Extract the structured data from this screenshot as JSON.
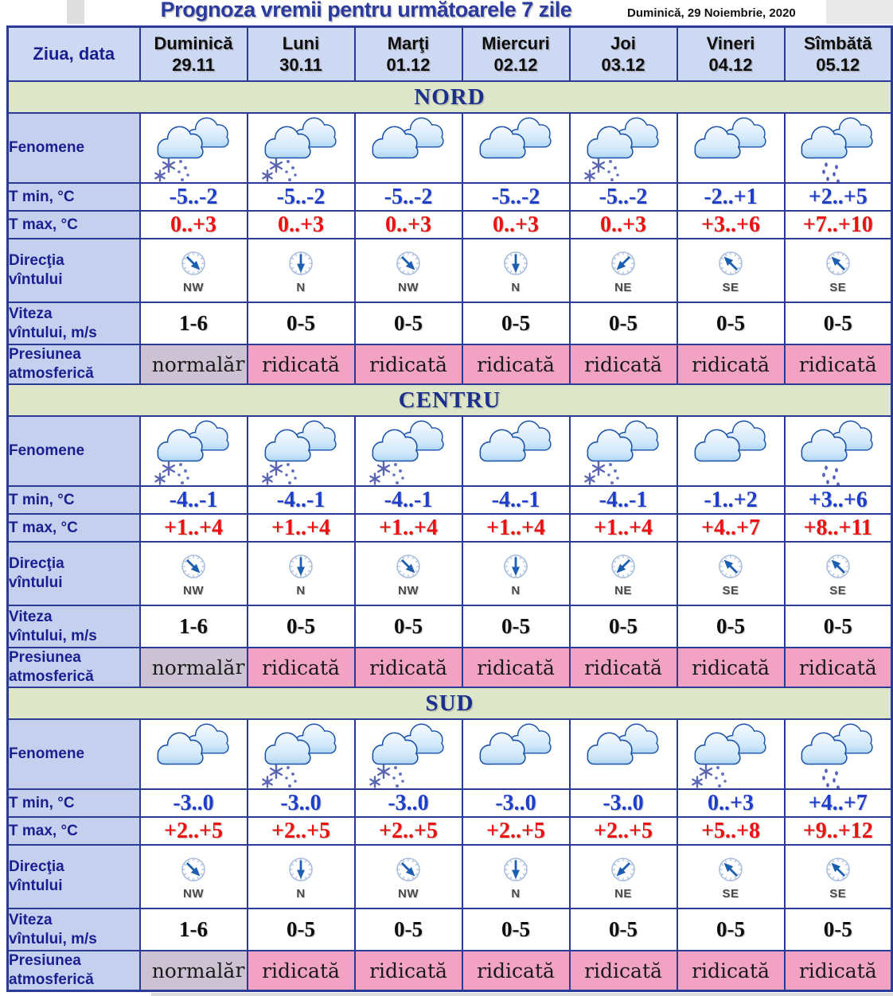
{
  "page": {
    "title": "Prognoza vremii pentru următoarele 7 zile",
    "date": "Duminică, 29 Noiembrie, 2020"
  },
  "colors": {
    "title_blue": "#2b3a9e",
    "border_navy": "#2b3a94",
    "header_bg": "#cdd9f2",
    "label_bg": "#c5cfee",
    "band_bg": "#dde6c8",
    "band_text": "#1c2f8c",
    "tmin_blue": "#1d3ecb",
    "tmax_red": "#ee1111",
    "pressure_high_bg": "#f2a2c2",
    "pressure_normal_bg": "#cdc2d3",
    "compass_blue": "#1c5fb0",
    "compass_ring": "#aabedd",
    "snow_slate": "#5a66b2",
    "wind_label_gray": "#4a4a4a"
  },
  "table": {
    "corner_label": "Ziua, data",
    "pressure_overflow": "r",
    "days": [
      {
        "name": "Duminică",
        "date": "29.11"
      },
      {
        "name": "Luni",
        "date": "30.11"
      },
      {
        "name": "Marţi",
        "date": "01.12"
      },
      {
        "name": "Miercuri",
        "date": "02.12"
      },
      {
        "name": "Joi",
        "date": "03.12"
      },
      {
        "name": "Vineri",
        "date": "04.12"
      },
      {
        "name": "Sîmbătă",
        "date": "05.12"
      }
    ],
    "row_labels": {
      "fenomene": "Fenomene",
      "tmin": "T min, °C",
      "tmax": "T max, °C",
      "dir": "Direcţia\nvîntului",
      "speed": "Viteza\nvîntului, m/s",
      "pressure": "Presiunea\natmosferică"
    },
    "sections": [
      {
        "name": "NORD",
        "fenomene": [
          "cloud-snow",
          "cloud-snow",
          "clouds",
          "clouds",
          "cloud-snow",
          "clouds",
          "cloud-rain"
        ],
        "tmin": [
          "-5..-2",
          "-5..-2",
          "-5..-2",
          "-5..-2",
          "-5..-2",
          "-2..+1",
          "+2..+5"
        ],
        "tmax": [
          "0..+3",
          "0..+3",
          "0..+3",
          "0..+3",
          "0..+3",
          "+3..+6",
          "+7..+10"
        ],
        "wind_dir": [
          "NW",
          "N",
          "NW",
          "N",
          "NE",
          "SE",
          "SE"
        ],
        "wind_speed": [
          "1-6",
          "0-5",
          "0-5",
          "0-5",
          "0-5",
          "0-5",
          "0-5"
        ],
        "pressure": [
          "normală",
          "ridicată",
          "ridicată",
          "ridicată",
          "ridicată",
          "ridicată",
          "ridicată"
        ]
      },
      {
        "name": "CENTRU",
        "fenomene": [
          "cloud-snow",
          "cloud-snow",
          "cloud-snow",
          "clouds",
          "cloud-snow",
          "clouds",
          "cloud-rain"
        ],
        "tmin": [
          "-4..-1",
          "-4..-1",
          "-4..-1",
          "-4..-1",
          "-4..-1",
          "-1..+2",
          "+3..+6"
        ],
        "tmax": [
          "+1..+4",
          "+1..+4",
          "+1..+4",
          "+1..+4",
          "+1..+4",
          "+4..+7",
          "+8..+11"
        ],
        "wind_dir": [
          "NW",
          "N",
          "NW",
          "N",
          "NE",
          "SE",
          "SE"
        ],
        "wind_speed": [
          "1-6",
          "0-5",
          "0-5",
          "0-5",
          "0-5",
          "0-5",
          "0-5"
        ],
        "pressure": [
          "normală",
          "ridicată",
          "ridicată",
          "ridicată",
          "ridicată",
          "ridicată",
          "ridicată"
        ]
      },
      {
        "name": "SUD",
        "fenomene": [
          "clouds",
          "cloud-snow",
          "cloud-snow",
          "clouds",
          "clouds",
          "cloud-snow",
          "cloud-rain"
        ],
        "tmin": [
          "-3..0",
          "-3..0",
          "-3..0",
          "-3..0",
          "-3..0",
          "0..+3",
          "+4..+7"
        ],
        "tmax": [
          "+2..+5",
          "+2..+5",
          "+2..+5",
          "+2..+5",
          "+2..+5",
          "+5..+8",
          "+9..+12"
        ],
        "wind_dir": [
          "NW",
          "N",
          "NW",
          "N",
          "NE",
          "SE",
          "SE"
        ],
        "wind_speed": [
          "1-6",
          "0-5",
          "0-5",
          "0-5",
          "0-5",
          "0-5",
          "0-5"
        ],
        "pressure": [
          "normală",
          "ridicată",
          "ridicată",
          "ridicată",
          "ridicată",
          "ridicată",
          "ridicată"
        ]
      }
    ]
  }
}
